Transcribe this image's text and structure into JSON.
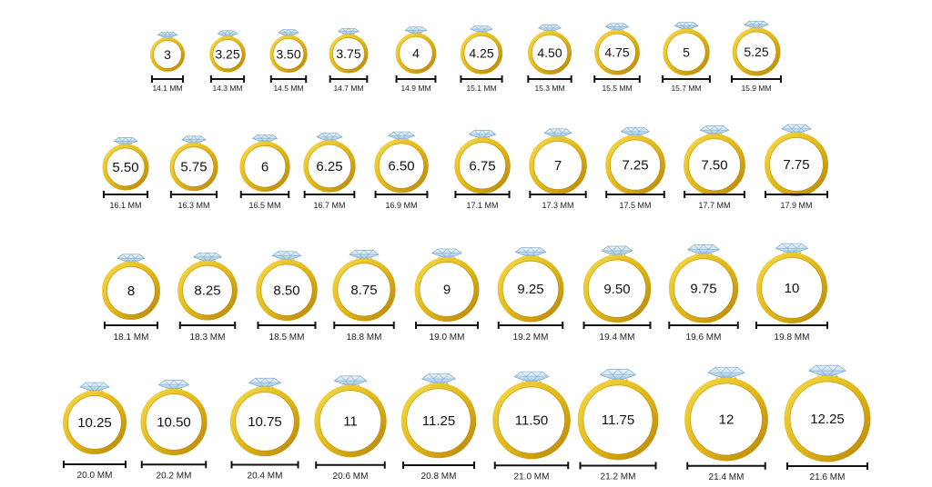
{
  "colors": {
    "gold_light": "#f5d84a",
    "gold_mid": "#e2b818",
    "gold_dark": "#b8860b",
    "diamond_light": "#eef6fc",
    "diamond_mid": "#b9d8ee",
    "diamond_dark": "#7ea7c6",
    "bar": "#111111",
    "text": "#111111"
  },
  "rows": [
    [
      {
        "size": "3",
        "mm": "14.1 MM"
      },
      {
        "size": "3.25",
        "mm": "14.3 MM"
      },
      {
        "size": "3.50",
        "mm": "14.5 MM"
      },
      {
        "size": "3.75",
        "mm": "14.7 MM"
      },
      {
        "size": "4",
        "mm": "14.9 MM"
      },
      {
        "size": "4.25",
        "mm": "15.1 MM"
      },
      {
        "size": "4.50",
        "mm": "15.3 MM"
      },
      {
        "size": "4.75",
        "mm": "15.5 MM"
      },
      {
        "size": "5",
        "mm": "15.7 MM"
      },
      {
        "size": "5.25",
        "mm": "15.9 MM"
      }
    ],
    [
      {
        "size": "5.50",
        "mm": "16.1 MM"
      },
      {
        "size": "5.75",
        "mm": "16.3 MM"
      },
      {
        "size": "6",
        "mm": "16.5 MM"
      },
      {
        "size": "6.25",
        "mm": "16.7 MM"
      },
      {
        "size": "6.50",
        "mm": "16.9 MM"
      },
      {
        "size": "6.75",
        "mm": "17.1 MM"
      },
      {
        "size": "7",
        "mm": "17.3 MM"
      },
      {
        "size": "7.25",
        "mm": "17.5 MM"
      },
      {
        "size": "7.50",
        "mm": "17.7 MM"
      },
      {
        "size": "7.75",
        "mm": "17.9 MM"
      }
    ],
    [
      {
        "size": "8",
        "mm": "18.1 MM"
      },
      {
        "size": "8.25",
        "mm": "18.3 MM"
      },
      {
        "size": "8.50",
        "mm": "18.5 MM"
      },
      {
        "size": "8.75",
        "mm": "18.8 MM"
      },
      {
        "size": "9",
        "mm": "19.0 MM"
      },
      {
        "size": "9.25",
        "mm": "19.2 MM"
      },
      {
        "size": "9.50",
        "mm": "19.4 MM"
      },
      {
        "size": "9.75",
        "mm": "19.6 MM"
      },
      {
        "size": "10",
        "mm": "19.8 MM"
      }
    ],
    [
      {
        "size": "10.25",
        "mm": "20.0 MM"
      },
      {
        "size": "10.50",
        "mm": "20.2 MM"
      },
      {
        "size": "10.75",
        "mm": "20.4 MM"
      },
      {
        "size": "11",
        "mm": "20.6 MM"
      },
      {
        "size": "11.25",
        "mm": "20.8 MM"
      },
      {
        "size": "11.50",
        "mm": "21.0 MM"
      },
      {
        "size": "11.75",
        "mm": "21.2 MM"
      },
      {
        "size": "12",
        "mm": "21.4 MM"
      },
      {
        "size": "12.25",
        "mm": "21.6 MM"
      }
    ]
  ]
}
